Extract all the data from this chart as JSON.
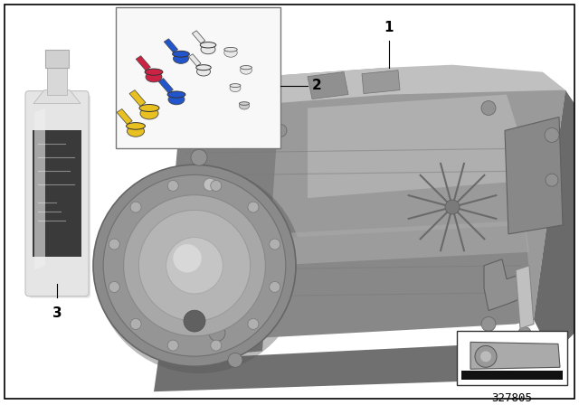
{
  "background_color": "#ffffff",
  "border_color": "#000000",
  "diagram_number": "327805",
  "transmission_base_color": "#8c8c8c",
  "transmission_light_color": "#b0b0b0",
  "transmission_dark_color": "#606060",
  "torque_converter_color": "#9a9a9a",
  "bottle_body_color": "#e0e0e0",
  "bottle_label_color": "#404040",
  "caps_box_edge": "#888888",
  "caps_box_fill": "#f5f5f5",
  "icon_box_edge": "#333333",
  "font_size_callout": 11,
  "font_size_diagram_num": 9,
  "callout_line_color": "#000000",
  "cap_yellow": "#e8c020",
  "cap_blue": "#2255cc",
  "cap_pink": "#cc2244",
  "cap_gray": "#cccccc",
  "cap_white": "#e8e8e8"
}
